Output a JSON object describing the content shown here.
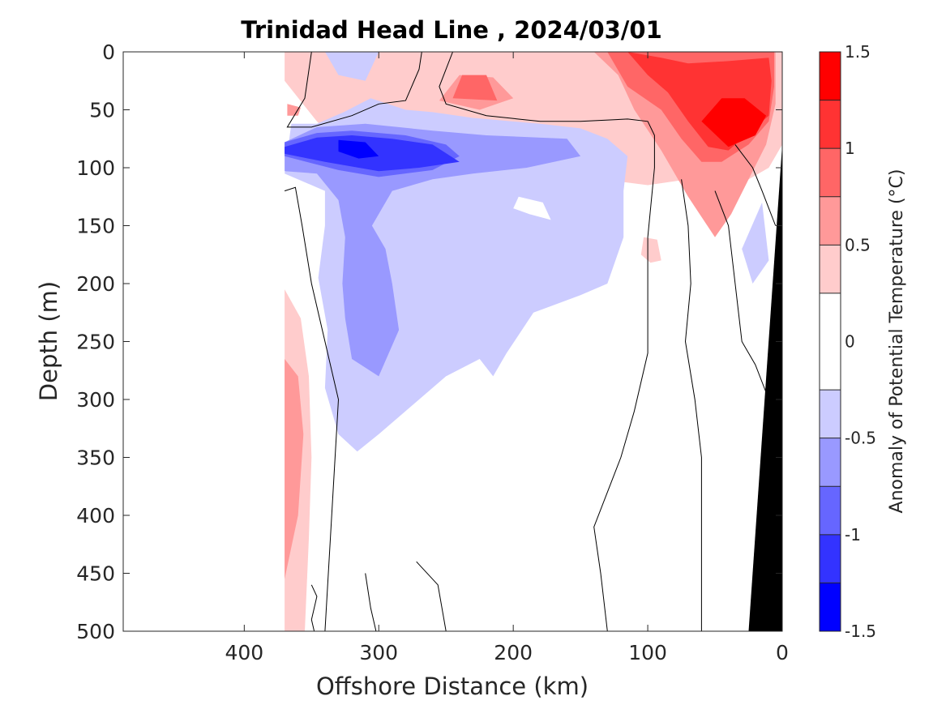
{
  "chart_data": {
    "type": "heatmap",
    "title": "Trinidad Head Line , 2024/03/01",
    "xlabel": "Offshore Distance (km)",
    "ylabel": "Depth (m)",
    "xlim": [
      490,
      0
    ],
    "ylim": [
      0,
      500
    ],
    "x_reversed": true,
    "y_reversed": true,
    "xticks": [
      400,
      300,
      200,
      100,
      0
    ],
    "yticks": [
      0,
      50,
      100,
      150,
      200,
      250,
      300,
      350,
      400,
      450,
      500
    ],
    "colorbar": {
      "label": "Anomaly of Potential Temperature (°C)",
      "range": [
        -1.5,
        1.5
      ],
      "ticks": [
        -1.5,
        -1,
        -0.5,
        0,
        0.5,
        1,
        1.5
      ],
      "levels": [
        -1.5,
        -1.25,
        -1.0,
        -0.75,
        -0.5,
        -0.25,
        0.25,
        0.5,
        0.75,
        1.0,
        1.25,
        1.5
      ],
      "colors": [
        "#0000ff",
        "#3333ff",
        "#6666ff",
        "#9999ff",
        "#ccccff",
        "#ffffff",
        "#ffcccc",
        "#ff9999",
        "#ff6666",
        "#ff3333",
        "#ff0000"
      ]
    },
    "data_extent_km": [
      370,
      0
    ],
    "bathymetry_color": "#000000",
    "grid": false,
    "regions": [
      {
        "anomaly": 0.35,
        "polygon": [
          [
            370,
            25
          ],
          [
            346,
            60
          ],
          [
            320,
            90
          ],
          [
            270,
            105
          ],
          [
            240,
            110
          ],
          [
            210,
            125
          ],
          [
            180,
            125
          ],
          [
            150,
            118
          ],
          [
            120,
            112
          ],
          [
            100,
            115
          ],
          [
            70,
            110
          ],
          [
            40,
            120
          ],
          [
            10,
            100
          ],
          [
            0,
            80
          ],
          [
            0,
            0
          ],
          [
            220,
            0
          ],
          [
            260,
            0
          ],
          [
            300,
            0
          ],
          [
            330,
            0
          ],
          [
            370,
            0
          ]
        ]
      },
      {
        "anomaly": 0.35,
        "polygon": [
          [
            370,
            205
          ],
          [
            358,
            230
          ],
          [
            352,
            280
          ],
          [
            350,
            350
          ],
          [
            352,
            420
          ],
          [
            355,
            500
          ],
          [
            370,
            500
          ]
        ]
      },
      {
        "anomaly": 0.35,
        "polygon": [
          [
            103,
            160
          ],
          [
            93,
            162
          ],
          [
            90,
            180
          ],
          [
            98,
            182
          ],
          [
            105,
            175
          ]
        ]
      },
      {
        "anomaly": 0.6,
        "polygon": [
          [
            368,
            45
          ],
          [
            358,
            48
          ],
          [
            360,
            55
          ],
          [
            368,
            55
          ]
        ]
      },
      {
        "anomaly": 0.6,
        "polygon": [
          [
            370,
            265
          ],
          [
            360,
            280
          ],
          [
            356,
            330
          ],
          [
            360,
            400
          ],
          [
            370,
            455
          ]
        ]
      },
      {
        "anomaly": 0.6,
        "polygon": [
          [
            255,
            42
          ],
          [
            240,
            20
          ],
          [
            215,
            22
          ],
          [
            200,
            40
          ],
          [
            225,
            50
          ]
        ]
      },
      {
        "anomaly": 0.6,
        "polygon": [
          [
            140,
            0
          ],
          [
            122,
            20
          ],
          [
            110,
            50
          ],
          [
            90,
            85
          ],
          [
            70,
            125
          ],
          [
            50,
            160
          ],
          [
            38,
            140
          ],
          [
            25,
            110
          ],
          [
            12,
            80
          ],
          [
            5,
            45
          ],
          [
            5,
            0
          ]
        ]
      },
      {
        "anomaly": 0.85,
        "polygon": [
          [
            245,
            40
          ],
          [
            238,
            20
          ],
          [
            220,
            20
          ],
          [
            212,
            42
          ]
        ]
      },
      {
        "anomaly": 0.85,
        "polygon": [
          [
            130,
            0
          ],
          [
            115,
            30
          ],
          [
            90,
            50
          ],
          [
            75,
            75
          ],
          [
            60,
            95
          ],
          [
            45,
            95
          ],
          [
            25,
            80
          ],
          [
            10,
            60
          ],
          [
            6,
            30
          ],
          [
            6,
            0
          ]
        ]
      },
      {
        "anomaly": 1.1,
        "polygon": [
          [
            115,
            0
          ],
          [
            100,
            20
          ],
          [
            85,
            35
          ],
          [
            70,
            60
          ],
          [
            55,
            82
          ],
          [
            40,
            85
          ],
          [
            25,
            70
          ],
          [
            10,
            55
          ],
          [
            8,
            25
          ],
          [
            10,
            5
          ],
          [
            40,
            8
          ],
          [
            70,
            10
          ],
          [
            90,
            5
          ]
        ]
      },
      {
        "anomaly": 1.35,
        "polygon": [
          [
            60,
            60
          ],
          [
            40,
            82
          ],
          [
            20,
            72
          ],
          [
            12,
            55
          ],
          [
            28,
            40
          ],
          [
            45,
            40
          ]
        ]
      },
      {
        "anomaly": -0.35,
        "polygon": [
          [
            365,
            62
          ],
          [
            346,
            62
          ],
          [
            326,
            52
          ],
          [
            306,
            40
          ],
          [
            280,
            50
          ],
          [
            260,
            52
          ],
          [
            230,
            57
          ],
          [
            180,
            62
          ],
          [
            150,
            66
          ],
          [
            130,
            75
          ],
          [
            115,
            90
          ],
          [
            118,
            120
          ],
          [
            118,
            160
          ],
          [
            130,
            200
          ],
          [
            150,
            210
          ],
          [
            185,
            225
          ],
          [
            205,
            260
          ],
          [
            215,
            280
          ],
          [
            225,
            265
          ],
          [
            250,
            280
          ],
          [
            270,
            300
          ],
          [
            300,
            330
          ],
          [
            316,
            345
          ],
          [
            330,
            330
          ],
          [
            340,
            290
          ],
          [
            338,
            240
          ],
          [
            345,
            195
          ],
          [
            340,
            150
          ],
          [
            340,
            120
          ],
          [
            370,
            105
          ]
        ]
      },
      {
        "anomaly": -0.35,
        "polygon": [
          [
            340,
            0
          ],
          [
            330,
            20
          ],
          [
            310,
            25
          ],
          [
            300,
            0
          ],
          [
            316,
            0
          ]
        ]
      },
      {
        "anomaly": -0.35,
        "polygon": [
          [
            15,
            130
          ],
          [
            10,
            180
          ],
          [
            22,
            200
          ],
          [
            30,
            170
          ]
        ]
      },
      {
        "anomaly": -0.6,
        "polygon": [
          [
            370,
            78
          ],
          [
            346,
            65
          ],
          [
            310,
            62
          ],
          [
            260,
            68
          ],
          [
            220,
            72
          ],
          [
            160,
            75
          ],
          [
            150,
            90
          ],
          [
            190,
            100
          ],
          [
            230,
            105
          ],
          [
            260,
            110
          ],
          [
            290,
            120
          ],
          [
            305,
            150
          ],
          [
            295,
            170
          ],
          [
            290,
            200
          ],
          [
            285,
            240
          ],
          [
            300,
            280
          ],
          [
            320,
            265
          ],
          [
            325,
            230
          ],
          [
            327,
            200
          ],
          [
            325,
            160
          ],
          [
            330,
            128
          ],
          [
            346,
            105
          ],
          [
            370,
            103
          ]
        ]
      },
      {
        "anomaly": -0.85,
        "polygon": [
          [
            370,
            78
          ],
          [
            346,
            70
          ],
          [
            320,
            68
          ],
          [
            280,
            72
          ],
          [
            250,
            80
          ],
          [
            240,
            90
          ],
          [
            260,
            102
          ],
          [
            300,
            108
          ],
          [
            330,
            102
          ],
          [
            370,
            90
          ]
        ]
      },
      {
        "anomaly": -1.1,
        "polygon": [
          [
            370,
            82
          ],
          [
            346,
            74
          ],
          [
            320,
            72
          ],
          [
            290,
            75
          ],
          [
            260,
            80
          ],
          [
            240,
            95
          ],
          [
            270,
            100
          ],
          [
            300,
            103
          ],
          [
            340,
            95
          ],
          [
            370,
            88
          ]
        ]
      },
      {
        "anomaly": -1.35,
        "polygon": [
          [
            330,
            76
          ],
          [
            310,
            78
          ],
          [
            300,
            90
          ],
          [
            315,
            92
          ],
          [
            330,
            86
          ]
        ]
      },
      {
        "anomaly": 0.0,
        "polygon": [
          [
            196,
            125
          ],
          [
            178,
            130
          ],
          [
            172,
            145
          ],
          [
            188,
            140
          ],
          [
            200,
            135
          ]
        ]
      }
    ],
    "zero_contours": [
      [
        [
          350,
          0
        ],
        [
          355,
          40
        ],
        [
          368,
          65
        ],
        [
          350,
          65
        ],
        [
          320,
          55
        ],
        [
          300,
          45
        ],
        [
          280,
          42
        ],
        [
          270,
          15
        ],
        [
          268,
          0
        ]
      ],
      [
        [
          245,
          0
        ],
        [
          255,
          30
        ],
        [
          250,
          45
        ],
        [
          220,
          55
        ],
        [
          180,
          60
        ],
        [
          150,
          60
        ],
        [
          115,
          58
        ],
        [
          100,
          60
        ],
        [
          95,
          72
        ],
        [
          95,
          100
        ],
        [
          100,
          160
        ],
        [
          100,
          260
        ],
        [
          110,
          310
        ],
        [
          120,
          350
        ],
        [
          130,
          380
        ],
        [
          140,
          410
        ],
        [
          135,
          450
        ],
        [
          130,
          500
        ]
      ],
      [
        [
          370,
          120
        ],
        [
          362,
          117
        ],
        [
          357,
          150
        ],
        [
          350,
          200
        ],
        [
          340,
          250
        ],
        [
          330,
          300
        ],
        [
          335,
          400
        ],
        [
          340,
          500
        ]
      ],
      [
        [
          350,
          460
        ],
        [
          346,
          470
        ],
        [
          350,
          490
        ],
        [
          348,
          500
        ]
      ],
      [
        [
          310,
          450
        ],
        [
          306,
          480
        ],
        [
          302,
          500
        ]
      ],
      [
        [
          272,
          440
        ],
        [
          256,
          460
        ],
        [
          250,
          500
        ]
      ],
      [
        [
          75,
          110
        ],
        [
          70,
          150
        ],
        [
          68,
          200
        ],
        [
          72,
          250
        ],
        [
          65,
          300
        ],
        [
          60,
          350
        ],
        [
          60,
          450
        ],
        [
          60,
          500
        ]
      ],
      [
        [
          50,
          120
        ],
        [
          40,
          150
        ],
        [
          35,
          200
        ],
        [
          30,
          250
        ],
        [
          20,
          270
        ],
        [
          10,
          300
        ]
      ],
      [
        [
          35,
          80
        ],
        [
          22,
          100
        ],
        [
          15,
          120
        ],
        [
          5,
          150
        ]
      ]
    ],
    "bathymetry_polygon": [
      [
        0,
        80
      ],
      [
        0,
        500
      ],
      [
        25,
        500
      ]
    ]
  }
}
